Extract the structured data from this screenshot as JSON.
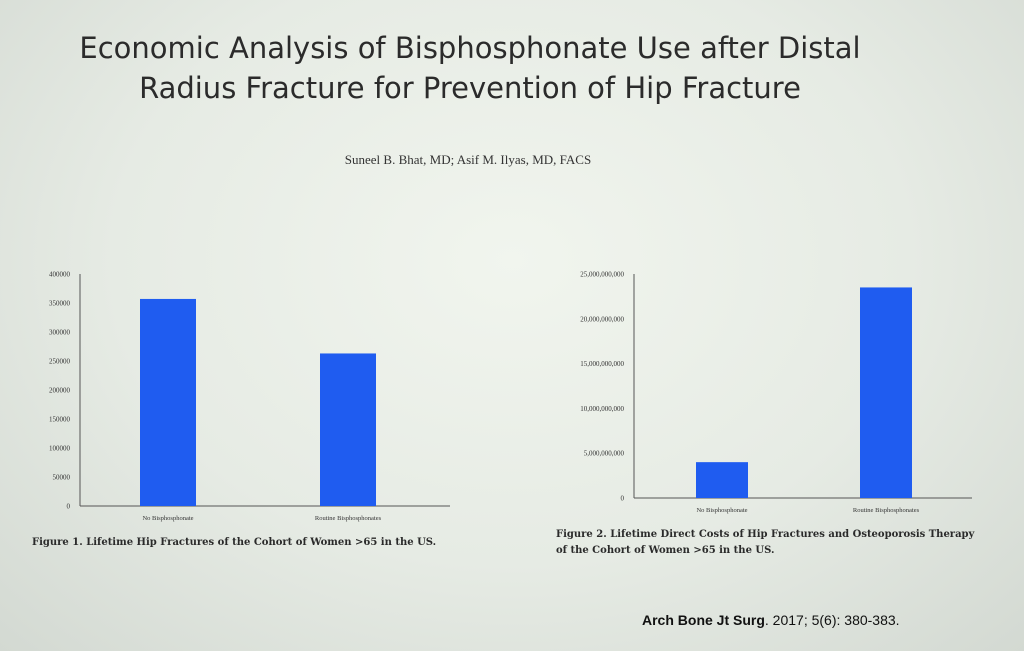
{
  "slide": {
    "title_line1": "Economic Analysis of Bisphosphonate Use after Distal",
    "title_line2": "Radius Fracture for Prevention of Hip Fracture",
    "authors": "Suneel B. Bhat, MD; Asif M. Ilyas, MD, FACS",
    "citation_journal": "Arch Bone Jt Surg",
    "citation_rest": ". 2017; 5(6): 380-383."
  },
  "chart_data": [
    {
      "type": "bar",
      "categories": [
        "No Bisphosphonate",
        "Routine Bisphosphonates"
      ],
      "values": [
        357000,
        263000
      ],
      "yticks": [
        "0",
        "50000",
        "100000",
        "150000",
        "200000",
        "250000",
        "300000",
        "350000",
        "400000"
      ],
      "ylim": [
        0,
        400000
      ],
      "caption": "Figure 1. Lifetime Hip Fractures of the Cohort of Women >65 in the US.",
      "bar_color": "#1f5cf0",
      "grid": false
    },
    {
      "type": "bar",
      "categories": [
        "No Bisphosphonate",
        "Routine Bisphosphonates"
      ],
      "values": [
        4000000000,
        23500000000
      ],
      "yticks": [
        "0",
        "5,000,000,000",
        "10,000,000,000",
        "15,000,000,000",
        "20,000,000,000",
        "25,000,000,000"
      ],
      "ylim": [
        0,
        25000000000
      ],
      "caption": "Figure 2. Lifetime Direct Costs of Hip Fractures and Osteoporosis Therapy of the Cohort of Women >65 in the US.",
      "bar_color": "#1f5cf0",
      "grid": false
    }
  ]
}
